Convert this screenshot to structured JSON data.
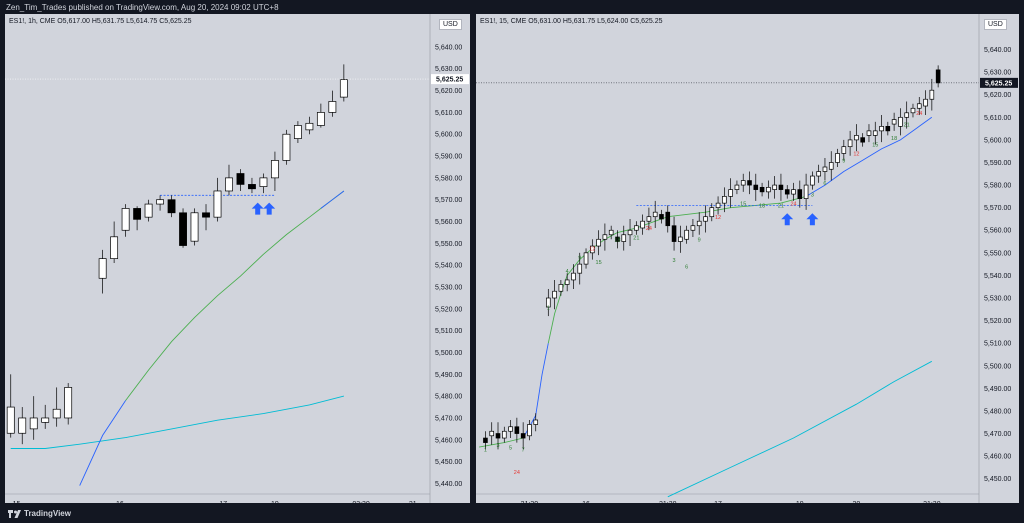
{
  "header": {
    "publisher_line": "Zen_Tim_Trades published on TradingView.com, Aug 20, 2024 09:02 UTC+8"
  },
  "footer": {
    "brand": "TradingView",
    "logo_icon": "tradingview-logo-icon"
  },
  "colors": {
    "background": "#131722",
    "panel": "#d1d4dc",
    "candle_up": "#ffffff",
    "candle_down": "#000000",
    "ma_fast_green": "#4caf50",
    "ma_fast_blue": "#2962ff",
    "ma_slow": "#00bcd4",
    "level_line": "#2962ff",
    "arrow": "#2962ff",
    "count_green": "#2e7d32",
    "count_red": "#e53935"
  },
  "charts": [
    {
      "id": "left",
      "symbol_line": "ES1!, 1h, CME  O5,617.00  H5,631.75  L5,614.75  C5,625.25",
      "currency": "USD",
      "last_price": "5,625.25",
      "ylim": [
        5437,
        5645
      ],
      "y_ticks": [
        "5,440.00",
        "5,450.00",
        "5,460.00",
        "5,470.00",
        "5,480.00",
        "5,490.00",
        "5,500.00",
        "5,510.00",
        "5,520.00",
        "5,530.00",
        "5,540.00",
        "5,550.00",
        "5,560.00",
        "5,570.00",
        "5,580.00",
        "5,590.00",
        "5,600.00",
        "5,610.00",
        "5,620.00",
        "5,630.00",
        "5,640.00"
      ],
      "x_ticks": [
        {
          "i": 0.5,
          "label": "15"
        },
        {
          "i": 9.5,
          "label": "16"
        },
        {
          "i": 18.5,
          "label": "17"
        },
        {
          "i": 23,
          "label": "19"
        },
        {
          "i": 30.5,
          "label": "03:30"
        },
        {
          "i": 35,
          "label": "21"
        }
      ],
      "bars": 37,
      "candles": [
        [
          5463,
          5475,
          5490,
          5461
        ],
        [
          5463,
          5470,
          5475,
          5458
        ],
        [
          5465,
          5470,
          5480,
          5460
        ],
        [
          5468,
          5470,
          5476,
          5465
        ],
        [
          5470,
          5474,
          5484,
          5466
        ],
        [
          5470,
          5484,
          5486,
          5467
        ],
        [
          5534,
          5543,
          5547,
          5527
        ],
        [
          5543,
          5553,
          5560,
          5541
        ],
        [
          5556,
          5566,
          5568,
          5553
        ],
        [
          5566,
          5561,
          5567,
          5556
        ],
        [
          5562,
          5568,
          5570,
          5560
        ],
        [
          5568,
          5570,
          5572,
          5565
        ],
        [
          5570,
          5564,
          5572,
          5562
        ],
        [
          5564,
          5549,
          5566,
          5548
        ],
        [
          5551,
          5564,
          5566,
          5549
        ],
        [
          5564,
          5562,
          5568,
          5556
        ],
        [
          5562,
          5574,
          5580,
          5560
        ],
        [
          5574,
          5580,
          5586,
          5572
        ],
        [
          5582,
          5577,
          5584,
          5574
        ],
        [
          5577,
          5575,
          5580,
          5573
        ],
        [
          5576,
          5580,
          5582,
          5573
        ],
        [
          5580,
          5588,
          5592,
          5574
        ],
        [
          5588,
          5600,
          5602,
          5586
        ],
        [
          5598,
          5604,
          5606,
          5596
        ],
        [
          5602,
          5605,
          5608,
          5600
        ],
        [
          5604,
          5610,
          5614,
          5603
        ],
        [
          5610,
          5615,
          5620,
          5608
        ],
        [
          5617,
          5625,
          5632,
          5615
        ]
      ],
      "candle_x": [
        0,
        1,
        2,
        3,
        4,
        5,
        8,
        9,
        10,
        11,
        12,
        13,
        14,
        15,
        16,
        17,
        18,
        19,
        20,
        21,
        22,
        23,
        24,
        25,
        26,
        27,
        28,
        29
      ],
      "ma_fast": [
        [
          6,
          5439
        ],
        [
          8,
          5462
        ],
        [
          10,
          5478
        ],
        [
          12,
          5492
        ],
        [
          14,
          5505
        ],
        [
          16,
          5516
        ],
        [
          18,
          5526
        ],
        [
          20,
          5535
        ],
        [
          22,
          5545
        ],
        [
          24,
          5554
        ],
        [
          26,
          5562
        ],
        [
          27,
          5566
        ],
        [
          28,
          5570
        ],
        [
          29,
          5574
        ]
      ],
      "ma_fast_split": 10,
      "ma_slow": [
        [
          0,
          5456
        ],
        [
          3,
          5456
        ],
        [
          6,
          5458
        ],
        [
          10,
          5461
        ],
        [
          14,
          5465
        ],
        [
          18,
          5469
        ],
        [
          22,
          5472
        ],
        [
          26,
          5476
        ],
        [
          29,
          5480
        ]
      ],
      "level": {
        "price": 5572,
        "from": 13,
        "to": 23
      },
      "arrows": [
        {
          "i": 21.5,
          "price": 5565
        },
        {
          "i": 22.5,
          "price": 5565
        }
      ]
    },
    {
      "id": "right",
      "symbol_line": "ES1!, 15, CME  O5,631.00  H5,631.75  L5,624.00  C5,625.25",
      "currency": "USD",
      "last_price": "5,625.25",
      "ylim": [
        5445,
        5646
      ],
      "y_ticks": [
        "5,450.00",
        "5,460.00",
        "5,470.00",
        "5,480.00",
        "5,490.00",
        "5,500.00",
        "5,510.00",
        "5,520.00",
        "5,530.00",
        "5,540.00",
        "5,550.00",
        "5,560.00",
        "5,570.00",
        "5,580.00",
        "5,590.00",
        "5,600.00",
        "5,610.00",
        "5,620.00",
        "5,630.00",
        "5,640.00"
      ],
      "x_ticks": [
        {
          "i": 8,
          "label": "21:30"
        },
        {
          "i": 17,
          "label": "16"
        },
        {
          "i": 30,
          "label": "21:30"
        },
        {
          "i": 38,
          "label": "17"
        },
        {
          "i": 51,
          "label": "19"
        },
        {
          "i": 60,
          "label": "20"
        },
        {
          "i": 72,
          "label": "21:30"
        }
      ],
      "bars": 80,
      "ohlc_seed": [
        5468,
        5469,
        5470,
        5468,
        5471,
        5473,
        5470,
        5469,
        5474,
        5476,
        5530,
        5533,
        5536,
        5538,
        5541,
        5545,
        5550,
        5553,
        5556,
        5558,
        5557,
        5555,
        5558,
        5560,
        5561,
        5564,
        5566,
        5567,
        5568,
        5562,
        5555,
        5556,
        5560,
        5562,
        5564,
        5566,
        5570,
        5572,
        5575,
        5578,
        5580,
        5582,
        5580,
        5579,
        5577,
        5578,
        5580,
        5578,
        5576,
        5578,
        5574,
        5580,
        5584,
        5586,
        5587,
        5590,
        5594,
        5597,
        5600,
        5601,
        5602,
        5602,
        5604,
        5606,
        5607,
        5606,
        5610,
        5612,
        5614,
        5615,
        5618,
        5622,
        5625
      ],
      "ma_fast": [
        [
          0,
          5464
        ],
        [
          4,
          5466
        ],
        [
          7,
          5468
        ],
        [
          9,
          5478
        ],
        [
          10,
          5496
        ],
        [
          11,
          5510
        ],
        [
          12,
          5523
        ],
        [
          13,
          5532
        ],
        [
          14,
          5540
        ],
        [
          16,
          5547
        ],
        [
          18,
          5552
        ],
        [
          20,
          5556
        ],
        [
          22,
          5559
        ],
        [
          25,
          5561
        ],
        [
          28,
          5564
        ],
        [
          30,
          5566
        ],
        [
          33,
          5567
        ],
        [
          36,
          5568
        ],
        [
          40,
          5570
        ],
        [
          44,
          5571
        ],
        [
          48,
          5572
        ],
        [
          52,
          5575
        ],
        [
          55,
          5580
        ],
        [
          58,
          5586
        ],
        [
          61,
          5591
        ],
        [
          64,
          5596
        ],
        [
          67,
          5600
        ],
        [
          70,
          5606
        ],
        [
          72,
          5610
        ]
      ],
      "ma_fast_split_index": 10,
      "ma_slow": [
        [
          30,
          5442
        ],
        [
          40,
          5455
        ],
        [
          50,
          5468
        ],
        [
          60,
          5483
        ],
        [
          66,
          5493
        ],
        [
          72,
          5502
        ]
      ],
      "level": {
        "price": 5571,
        "from": 25,
        "to": 53
      },
      "arrows": [
        {
          "i": 49,
          "price": 5564
        },
        {
          "i": 53,
          "price": 5564
        }
      ],
      "counts": [
        {
          "i": 1,
          "price": 5462,
          "t": "1",
          "c": "g"
        },
        {
          "i": 3,
          "price": 5464,
          "t": "3",
          "c": "g"
        },
        {
          "i": 5,
          "price": 5463,
          "t": "5",
          "c": "g"
        },
        {
          "i": 7,
          "price": 5462,
          "t": "7",
          "c": "g"
        },
        {
          "i": 6,
          "price": 5452,
          "t": "24",
          "c": "r"
        },
        {
          "i": 11,
          "price": 5525,
          "t": "1",
          "c": "g"
        },
        {
          "i": 14,
          "price": 5541,
          "t": "4",
          "c": "g"
        },
        {
          "i": 16,
          "price": 5547,
          "t": "9",
          "c": "g"
        },
        {
          "i": 18,
          "price": 5551,
          "t": "12",
          "c": "r"
        },
        {
          "i": 19,
          "price": 5545,
          "t": "15",
          "c": "g"
        },
        {
          "i": 22,
          "price": 5555,
          "t": "18",
          "c": "g"
        },
        {
          "i": 25,
          "price": 5556,
          "t": "21",
          "c": "g"
        },
        {
          "i": 27,
          "price": 5560,
          "t": "24",
          "c": "r"
        },
        {
          "i": 31,
          "price": 5546,
          "t": "3",
          "c": "g"
        },
        {
          "i": 33,
          "price": 5543,
          "t": "6",
          "c": "g"
        },
        {
          "i": 35,
          "price": 5555,
          "t": "9",
          "c": "g"
        },
        {
          "i": 38,
          "price": 5565,
          "t": "12",
          "c": "r"
        },
        {
          "i": 42,
          "price": 5571,
          "t": "15",
          "c": "g"
        },
        {
          "i": 45,
          "price": 5570,
          "t": "18",
          "c": "g"
        },
        {
          "i": 48,
          "price": 5570,
          "t": "21",
          "c": "g"
        },
        {
          "i": 50,
          "price": 5571,
          "t": "24",
          "c": "r"
        },
        {
          "i": 53,
          "price": 5575,
          "t": "3",
          "c": "g"
        },
        {
          "i": 55,
          "price": 5580,
          "t": "6",
          "c": "g"
        },
        {
          "i": 58,
          "price": 5590,
          "t": "9",
          "c": "g"
        },
        {
          "i": 60,
          "price": 5593,
          "t": "12",
          "c": "r"
        },
        {
          "i": 63,
          "price": 5597,
          "t": "15",
          "c": "g"
        },
        {
          "i": 66,
          "price": 5600,
          "t": "18",
          "c": "g"
        },
        {
          "i": 68,
          "price": 5606,
          "t": "21",
          "c": "g"
        },
        {
          "i": 70,
          "price": 5611,
          "t": "24",
          "c": "r"
        }
      ]
    }
  ]
}
